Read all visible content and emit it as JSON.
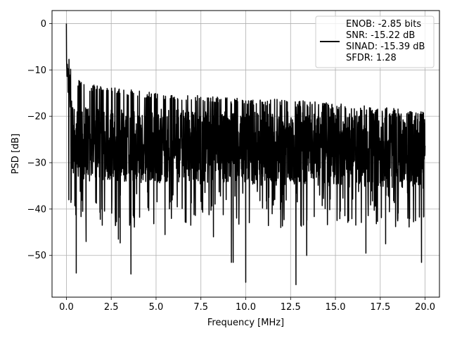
{
  "chart_data": {
    "type": "line",
    "title": "",
    "xlabel": "Frequency [MHz]",
    "ylabel": "PSD [dB]",
    "xlim": [
      -0.8,
      20.8
    ],
    "ylim": [
      -59.0,
      2.8
    ],
    "xticks": [
      0.0,
      2.5,
      5.0,
      7.5,
      10.0,
      12.5,
      15.0,
      17.5,
      20.0
    ],
    "xtick_labels": [
      "0.0",
      "2.5",
      "5.0",
      "7.5",
      "10.0",
      "12.5",
      "15.0",
      "17.5",
      "20.0"
    ],
    "yticks": [
      0,
      -10,
      -20,
      -30,
      -40,
      -50
    ],
    "ytick_labels": [
      "0",
      "−10",
      "−20",
      "−30",
      "−40",
      "−50"
    ],
    "grid": true,
    "legend_position": "top-right",
    "legend": {
      "lines": [
        "ENOB: -2.85 bits",
        "SNR: -15.22 dB",
        "SINAD: -15.39 dB",
        "SFDR: 1.28"
      ]
    },
    "series": [
      {
        "color": "#000000",
        "x_start": 0.0,
        "x_end": 20.0,
        "note_shape": "noise floor",
        "peak": {
          "x": 0.0,
          "y": 0.0
        },
        "envelope_upper": [
          [
            0.0,
            0.0
          ],
          [
            0.05,
            -5
          ],
          [
            0.3,
            -11
          ],
          [
            1.0,
            -13
          ],
          [
            5.0,
            -15
          ],
          [
            10.0,
            -16
          ],
          [
            15.0,
            -17
          ],
          [
            20.0,
            -19
          ]
        ],
        "envelope_lower": [
          [
            0.1,
            -35
          ],
          [
            0.5,
            -54
          ],
          [
            3.5,
            -54
          ],
          [
            9.2,
            -51.5
          ],
          [
            10.0,
            -55.8
          ],
          [
            12.8,
            -56.3
          ],
          [
            19.9,
            -51.5
          ]
        ],
        "notable_minima": [
          {
            "x": 0.55,
            "y": -53.8
          },
          {
            "x": 1.1,
            "y": -47.0
          },
          {
            "x": 2.0,
            "y": -43.5
          },
          {
            "x": 2.9,
            "y": -46.5
          },
          {
            "x": 3.0,
            "y": -47.3
          },
          {
            "x": 3.6,
            "y": -54.0
          },
          {
            "x": 5.5,
            "y": -45.5
          },
          {
            "x": 8.2,
            "y": -46.0
          },
          {
            "x": 9.2,
            "y": -51.5
          },
          {
            "x": 9.3,
            "y": -51.5
          },
          {
            "x": 10.0,
            "y": -55.8
          },
          {
            "x": 12.8,
            "y": -56.3
          },
          {
            "x": 13.4,
            "y": -50.0
          },
          {
            "x": 16.7,
            "y": -49.5
          },
          {
            "x": 17.8,
            "y": -47.5
          },
          {
            "x": 19.8,
            "y": -51.5
          }
        ]
      }
    ]
  }
}
